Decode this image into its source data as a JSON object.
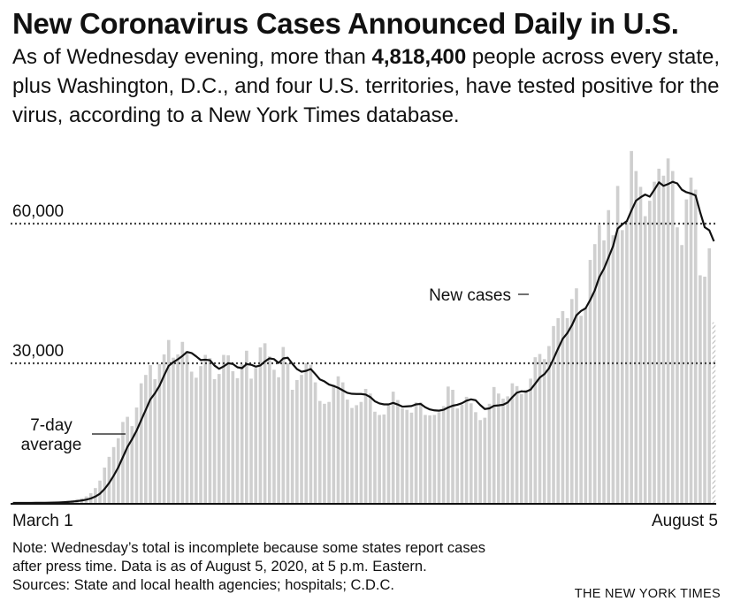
{
  "title": "New Coronavirus Cases Announced Daily in U.S.",
  "subtitle": {
    "before": "As of Wednesday evening, more than ",
    "highlight": "4,818,400",
    "after": " people across every state, plus Washington, D.C., and four U.S. territories, have tested positive for the virus, according to a New York Times database."
  },
  "chart_data": {
    "type": "bar",
    "x_start_label": "March 1",
    "x_end_label": "August 5",
    "y_ticks": [
      {
        "value": 30000,
        "label": "30,000"
      },
      {
        "value": 60000,
        "label": "60,000"
      }
    ],
    "ylim": [
      0,
      78000
    ],
    "grid": "dotted lines at tick values",
    "bar_color": "#cfcfcf",
    "line_color": "#111111",
    "partial_last_day": true,
    "annotations": {
      "bars": "New cases",
      "line_1": "7-day",
      "line_2": "average"
    },
    "series": [
      {
        "kind": "bars",
        "values": [
          5,
          8,
          15,
          20,
          25,
          35,
          60,
          85,
          110,
          160,
          260,
          350,
          450,
          610,
          820,
          1000,
          1400,
          2100,
          3200,
          4800,
          7600,
          9900,
          12000,
          13900,
          17400,
          18500,
          16500,
          20500,
          25700,
          27500,
          29600,
          26600,
          29800,
          31900,
          35000,
          31200,
          31900,
          34600,
          32600,
          28200,
          26900,
          29400,
          31800,
          31100,
          26600,
          27700,
          31800,
          31700,
          28300,
          26800,
          29800,
          32700,
          26700,
          29000,
          33400,
          34300,
          31500,
          28600,
          27000,
          33500,
          30000,
          24300,
          26400,
          27500,
          30000,
          29700,
          25900,
          21900,
          21300,
          21700,
          25400,
          27200,
          25900,
          22200,
          20400,
          21000,
          21700,
          24500,
          23500,
          19600,
          18900,
          19000,
          21000,
          23900,
          22100,
          20300,
          20000,
          19400,
          21600,
          21600,
          18900,
          18800,
          18900,
          19500,
          20800,
          25000,
          24300,
          20300,
          21100,
          22800,
          21400,
          19500,
          17800,
          18300,
          21300,
          24900,
          23500,
          22400,
          22900,
          25700,
          25100,
          23400,
          24300,
          26700,
          31300,
          32000,
          30900,
          33700,
          38000,
          39700,
          41200,
          39700,
          43800,
          46100,
          40200,
          42000,
          52200,
          55600,
          59700,
          56400,
          62900,
          57500,
          68100,
          58600,
          60600,
          75600,
          71300,
          67900,
          61600,
          64900,
          69000,
          71800,
          70300,
          74000,
          71300,
          59200,
          55400,
          65200,
          69900,
          67300,
          48900,
          48600,
          54700,
          38800
        ]
      }
    ]
  },
  "note": {
    "line_1": "Note: Wednesday’s total is incomplete because some states report cases",
    "line_2": "after press time. Data is as of August 5, 2020, at 5 p.m. Eastern.",
    "sources": "Sources: State and local health agencies; hospitals; C.D.C."
  },
  "credit": "THE NEW YORK TIMES"
}
